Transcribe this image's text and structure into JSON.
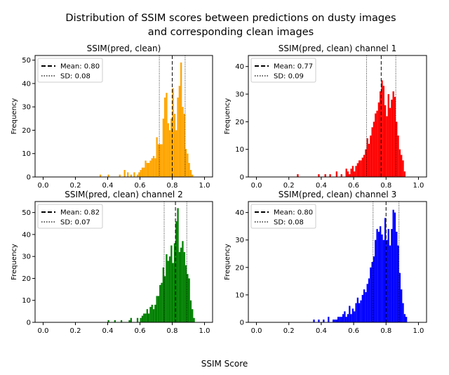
{
  "figure": {
    "title_line1": "Distribution of SSIM scores between predictions on dusty images",
    "title_line2": "and corresponding clean images",
    "xlabel": "SSIM Score"
  },
  "chart_data": [
    {
      "type": "bar",
      "title": "SSIM(pred, clean)",
      "ylabel": "Frequency",
      "xlim": [
        -0.05,
        1.05
      ],
      "ylim": [
        0,
        52
      ],
      "xticks": [
        "0.0",
        "0.2",
        "0.4",
        "0.6",
        "0.8",
        "1.0"
      ],
      "yticks": [
        "0",
        "10",
        "20",
        "30",
        "40",
        "50"
      ],
      "color": "#ffa500",
      "bin_width": 0.01,
      "bins": [
        [
          0.35,
          1
        ],
        [
          0.4,
          1
        ],
        [
          0.47,
          1
        ],
        [
          0.5,
          3
        ],
        [
          0.52,
          2
        ],
        [
          0.54,
          1
        ],
        [
          0.56,
          2
        ],
        [
          0.58,
          1
        ],
        [
          0.59,
          2
        ],
        [
          0.6,
          3
        ],
        [
          0.61,
          4
        ],
        [
          0.62,
          4
        ],
        [
          0.63,
          7
        ],
        [
          0.64,
          6
        ],
        [
          0.65,
          6
        ],
        [
          0.66,
          7
        ],
        [
          0.67,
          8
        ],
        [
          0.68,
          9
        ],
        [
          0.69,
          8
        ],
        [
          0.7,
          17
        ],
        [
          0.71,
          14
        ],
        [
          0.72,
          14
        ],
        [
          0.73,
          14
        ],
        [
          0.74,
          25
        ],
        [
          0.75,
          34
        ],
        [
          0.76,
          36
        ],
        [
          0.77,
          23
        ],
        [
          0.78,
          20
        ],
        [
          0.79,
          25
        ],
        [
          0.8,
          38
        ],
        [
          0.81,
          27
        ],
        [
          0.82,
          20
        ],
        [
          0.83,
          34
        ],
        [
          0.84,
          39
        ],
        [
          0.85,
          49
        ],
        [
          0.86,
          30
        ],
        [
          0.87,
          27
        ],
        [
          0.88,
          12
        ],
        [
          0.89,
          10
        ],
        [
          0.9,
          6
        ],
        [
          0.91,
          3
        ],
        [
          0.92,
          1
        ]
      ],
      "mean": 0.8,
      "sd": 0.08,
      "legend": [
        "Mean: 0.80",
        "SD: 0.08"
      ],
      "legend_position": "upper-left"
    },
    {
      "type": "bar",
      "title": "SSIM(pred, clean) channel 1",
      "ylabel": "Frequency",
      "xlim": [
        -0.05,
        1.05
      ],
      "ylim": [
        0,
        44
      ],
      "xticks": [
        "0.0",
        "0.2",
        "0.4",
        "0.6",
        "0.8",
        "1.0"
      ],
      "yticks": [
        "0",
        "10",
        "20",
        "30",
        "40"
      ],
      "color": "#ff0000",
      "bin_width": 0.01,
      "bins": [
        [
          0.25,
          1
        ],
        [
          0.38,
          1
        ],
        [
          0.42,
          1
        ],
        [
          0.45,
          1
        ],
        [
          0.49,
          2
        ],
        [
          0.52,
          1
        ],
        [
          0.55,
          3
        ],
        [
          0.56,
          2
        ],
        [
          0.57,
          1
        ],
        [
          0.58,
          3
        ],
        [
          0.59,
          4
        ],
        [
          0.6,
          2
        ],
        [
          0.61,
          4
        ],
        [
          0.62,
          5
        ],
        [
          0.63,
          6
        ],
        [
          0.64,
          6
        ],
        [
          0.65,
          7
        ],
        [
          0.66,
          8
        ],
        [
          0.67,
          10
        ],
        [
          0.68,
          14
        ],
        [
          0.69,
          12
        ],
        [
          0.7,
          15
        ],
        [
          0.71,
          18
        ],
        [
          0.72,
          20
        ],
        [
          0.73,
          23
        ],
        [
          0.74,
          24
        ],
        [
          0.75,
          27
        ],
        [
          0.76,
          31
        ],
        [
          0.77,
          35
        ],
        [
          0.78,
          33
        ],
        [
          0.79,
          26
        ],
        [
          0.8,
          22
        ],
        [
          0.81,
          30
        ],
        [
          0.82,
          25
        ],
        [
          0.83,
          28
        ],
        [
          0.84,
          31
        ],
        [
          0.85,
          29
        ],
        [
          0.86,
          20
        ],
        [
          0.87,
          15
        ],
        [
          0.88,
          10
        ],
        [
          0.89,
          8
        ],
        [
          0.9,
          6
        ],
        [
          0.91,
          2
        ]
      ],
      "mean": 0.77,
      "sd": 0.09,
      "legend": [
        "Mean: 0.77",
        "SD: 0.09"
      ],
      "legend_position": "upper-left"
    },
    {
      "type": "bar",
      "title": "SSIM(pred, clean) channel 2",
      "ylabel": "Frequency",
      "xlim": [
        -0.05,
        1.05
      ],
      "ylim": [
        0,
        55
      ],
      "xticks": [
        "0.0",
        "0.2",
        "0.4",
        "0.6",
        "0.8",
        "1.0"
      ],
      "yticks": [
        "0",
        "10",
        "20",
        "30",
        "40",
        "50"
      ],
      "color": "#008000",
      "bin_width": 0.01,
      "bins": [
        [
          0.4,
          1
        ],
        [
          0.44,
          1
        ],
        [
          0.48,
          1
        ],
        [
          0.53,
          1
        ],
        [
          0.54,
          2
        ],
        [
          0.58,
          2
        ],
        [
          0.6,
          2
        ],
        [
          0.61,
          3
        ],
        [
          0.62,
          4
        ],
        [
          0.63,
          4
        ],
        [
          0.64,
          6
        ],
        [
          0.65,
          4
        ],
        [
          0.66,
          7
        ],
        [
          0.67,
          8
        ],
        [
          0.68,
          6
        ],
        [
          0.69,
          8
        ],
        [
          0.7,
          12
        ],
        [
          0.71,
          12
        ],
        [
          0.72,
          17
        ],
        [
          0.73,
          18
        ],
        [
          0.74,
          25
        ],
        [
          0.75,
          21
        ],
        [
          0.76,
          31
        ],
        [
          0.77,
          28
        ],
        [
          0.78,
          30
        ],
        [
          0.79,
          35
        ],
        [
          0.8,
          27
        ],
        [
          0.81,
          36
        ],
        [
          0.82,
          46
        ],
        [
          0.83,
          52
        ],
        [
          0.84,
          32
        ],
        [
          0.85,
          34
        ],
        [
          0.86,
          37
        ],
        [
          0.87,
          32
        ],
        [
          0.88,
          26
        ],
        [
          0.89,
          22
        ],
        [
          0.9,
          20
        ],
        [
          0.91,
          10
        ],
        [
          0.92,
          6
        ],
        [
          0.93,
          2
        ]
      ],
      "mean": 0.82,
      "sd": 0.07,
      "legend": [
        "Mean: 0.82",
        "SD: 0.07"
      ],
      "legend_position": "upper-left"
    },
    {
      "type": "bar",
      "title": "SSIM(pred, clean) channel 3",
      "ylabel": "Frequency",
      "xlim": [
        -0.05,
        1.05
      ],
      "ylim": [
        0,
        44
      ],
      "xticks": [
        "0.0",
        "0.2",
        "0.4",
        "0.6",
        "0.8",
        "1.0"
      ],
      "yticks": [
        "0",
        "10",
        "20",
        "30",
        "40"
      ],
      "color": "#0000ff",
      "bin_width": 0.01,
      "bins": [
        [
          0.35,
          1
        ],
        [
          0.38,
          1
        ],
        [
          0.41,
          1
        ],
        [
          0.44,
          2
        ],
        [
          0.47,
          1
        ],
        [
          0.48,
          1
        ],
        [
          0.49,
          1
        ],
        [
          0.5,
          2
        ],
        [
          0.51,
          2
        ],
        [
          0.52,
          2
        ],
        [
          0.53,
          3
        ],
        [
          0.54,
          4
        ],
        [
          0.55,
          2
        ],
        [
          0.56,
          3
        ],
        [
          0.57,
          6
        ],
        [
          0.58,
          3
        ],
        [
          0.59,
          5
        ],
        [
          0.6,
          4
        ],
        [
          0.61,
          7
        ],
        [
          0.62,
          9
        ],
        [
          0.63,
          7
        ],
        [
          0.64,
          8
        ],
        [
          0.65,
          10
        ],
        [
          0.66,
          12
        ],
        [
          0.67,
          11
        ],
        [
          0.68,
          14
        ],
        [
          0.69,
          16
        ],
        [
          0.7,
          20
        ],
        [
          0.71,
          22
        ],
        [
          0.72,
          24
        ],
        [
          0.73,
          30
        ],
        [
          0.74,
          34
        ],
        [
          0.75,
          33
        ],
        [
          0.76,
          35
        ],
        [
          0.77,
          32
        ],
        [
          0.78,
          30
        ],
        [
          0.79,
          38
        ],
        [
          0.8,
          30
        ],
        [
          0.81,
          34
        ],
        [
          0.82,
          28
        ],
        [
          0.83,
          34
        ],
        [
          0.84,
          41
        ],
        [
          0.85,
          40
        ],
        [
          0.86,
          33
        ],
        [
          0.87,
          28
        ],
        [
          0.88,
          18
        ],
        [
          0.89,
          12
        ],
        [
          0.9,
          7
        ],
        [
          0.91,
          3
        ],
        [
          0.92,
          2
        ]
      ],
      "mean": 0.8,
      "sd": 0.08,
      "legend": [
        "Mean: 0.80",
        "SD: 0.08"
      ],
      "legend_position": "upper-left"
    }
  ]
}
